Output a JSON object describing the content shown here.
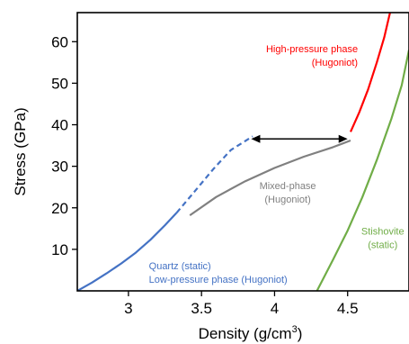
{
  "chart_data": {
    "type": "line",
    "xlabel": "Density (g/cm",
    "xlabel_sup": "3",
    "xlabel_close": ")",
    "ylabel": "Stress (GPa)",
    "xlim": [
      2.65,
      4.92
    ],
    "ylim": [
      0,
      67
    ],
    "xticks": [
      3,
      3.5,
      4,
      4.5
    ],
    "xtick_labels": [
      "3",
      "3.5",
      "4",
      "4.5"
    ],
    "yticks": [
      10,
      20,
      30,
      40,
      50,
      60
    ],
    "ytick_labels": [
      "10",
      "20",
      "30",
      "40",
      "50",
      "60"
    ],
    "grid": false,
    "series": [
      {
        "key": "quartz",
        "color": "#4472c4",
        "style": "solid",
        "points": [
          [
            2.65,
            0
          ],
          [
            2.75,
            2
          ],
          [
            2.85,
            4.2
          ],
          [
            2.95,
            6.6
          ],
          [
            3.05,
            9.2
          ],
          [
            3.15,
            12.3
          ],
          [
            3.25,
            15.8
          ],
          [
            3.33,
            18.8
          ]
        ]
      },
      {
        "key": "quartz-extrapolated",
        "color": "#4472c4",
        "style": "dashed",
        "points": [
          [
            3.33,
            18.8
          ],
          [
            3.45,
            23.8
          ],
          [
            3.58,
            29.3
          ],
          [
            3.7,
            33.9
          ],
          [
            3.85,
            37.2
          ]
        ]
      },
      {
        "key": "mixed-phase",
        "color": "#808080",
        "style": "solid",
        "points": [
          [
            3.42,
            18.2
          ],
          [
            3.6,
            22.6
          ],
          [
            3.8,
            26.4
          ],
          [
            4.0,
            29.6
          ],
          [
            4.2,
            32.3
          ],
          [
            4.4,
            34.6
          ],
          [
            4.52,
            36.2
          ]
        ]
      },
      {
        "key": "high-pressure-phase",
        "color": "#ff0000",
        "style": "solid",
        "points": [
          [
            4.52,
            38.3
          ],
          [
            4.58,
            43
          ],
          [
            4.64,
            48.5
          ],
          [
            4.7,
            55
          ],
          [
            4.75,
            61
          ],
          [
            4.79,
            67
          ]
        ]
      },
      {
        "key": "stishovite",
        "color": "#70ad47",
        "style": "solid",
        "points": [
          [
            4.29,
            0
          ],
          [
            4.4,
            7.5
          ],
          [
            4.5,
            14.5
          ],
          [
            4.6,
            22.5
          ],
          [
            4.7,
            31.5
          ],
          [
            4.8,
            41.5
          ],
          [
            4.87,
            49.5
          ],
          [
            4.92,
            58
          ]
        ]
      }
    ],
    "arrow": {
      "from": [
        3.84,
        36.6
      ],
      "to": [
        4.5,
        36.6
      ],
      "color": "#000000",
      "double_headed": true
    },
    "annotations": [
      {
        "key": "high-pressure",
        "lines": [
          "High-pressure phase",
          "(Hugoniot)"
        ],
        "color": "#ff0000",
        "x": 4.57,
        "y": 57.5,
        "anchor": "end"
      },
      {
        "key": "mixed",
        "lines": [
          "Mixed-phase",
          "(Hugoniot)"
        ],
        "color": "#808080",
        "x": 4.09,
        "y": 24.5,
        "anchor": "middle"
      },
      {
        "key": "stishovite",
        "lines": [
          "Stishovite",
          "(static)"
        ],
        "color": "#70ad47",
        "x": 4.74,
        "y": 13.6,
        "anchor": "middle"
      },
      {
        "key": "quartz",
        "lines": [
          "Quartz (static)",
          "Low-pressure phase (Hugoniot)"
        ],
        "color": "#4472c4",
        "x": 3.14,
        "y": 5.2,
        "anchor": "start"
      }
    ]
  }
}
